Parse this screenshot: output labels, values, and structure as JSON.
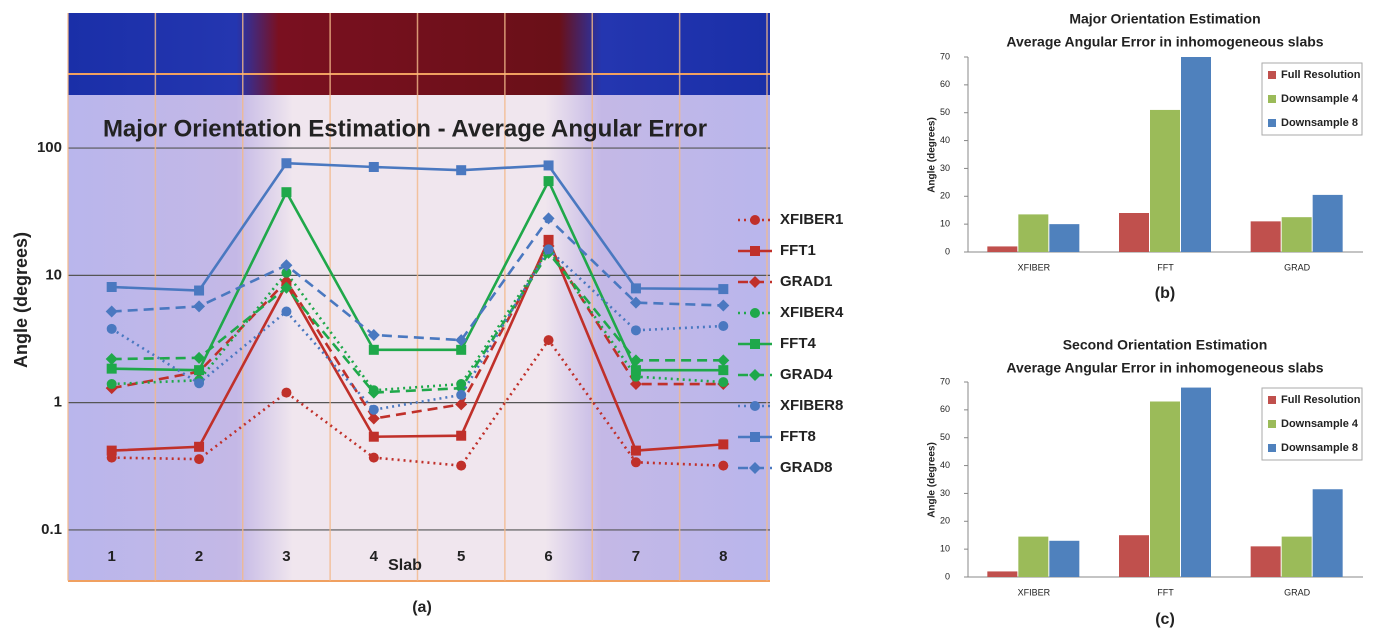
{
  "chart_data": [
    {
      "type": "line",
      "title": "Major Orientation Estimation - Average Angular Error",
      "xlabel": "Slab",
      "ylabel": "Angle (degrees)",
      "caption": "(a)",
      "categories": [
        "1",
        "2",
        "3",
        "4",
        "5",
        "6",
        "7",
        "8"
      ],
      "log_scale": true,
      "grid": true,
      "legend": "right",
      "ylim": [
        0.04,
        250
      ],
      "yticks": [
        0.1,
        1,
        10,
        100
      ],
      "series": [
        {
          "name": "XFIBER1",
          "color": "#c0302a",
          "dash": "dotted",
          "marker": "circle",
          "values": [
            0.37,
            0.36,
            1.2,
            0.37,
            0.32,
            3.1,
            0.34,
            0.32
          ]
        },
        {
          "name": "FFT1",
          "color": "#c0302a",
          "dash": "solid",
          "marker": "square",
          "values": [
            0.42,
            0.45,
            8.5,
            0.54,
            0.55,
            19,
            0.42,
            0.47
          ]
        },
        {
          "name": "GRAD1",
          "color": "#c0302a",
          "dash": "dashed",
          "marker": "diamond",
          "values": [
            1.3,
            1.75,
            9,
            0.75,
            0.97,
            17,
            1.4,
            1.4
          ]
        },
        {
          "name": "XFIBER4",
          "color": "#1fa84a",
          "dash": "dotted",
          "marker": "circle",
          "values": [
            1.4,
            1.5,
            10.5,
            1.25,
            1.4,
            16,
            1.6,
            1.45
          ]
        },
        {
          "name": "FFT4",
          "color": "#1fa84a",
          "dash": "solid",
          "marker": "square",
          "values": [
            1.85,
            1.8,
            45,
            2.6,
            2.6,
            55,
            1.8,
            1.8
          ]
        },
        {
          "name": "GRAD4",
          "color": "#1fa84a",
          "dash": "dashed",
          "marker": "diamond",
          "values": [
            2.2,
            2.25,
            8,
            1.2,
            1.3,
            15,
            2.15,
            2.15
          ]
        },
        {
          "name": "XFIBER8",
          "color": "#4a78c0",
          "dash": "dotted",
          "marker": "circle",
          "values": [
            3.8,
            1.42,
            5.2,
            0.88,
            1.15,
            16,
            3.7,
            4
          ]
        },
        {
          "name": "FFT8",
          "color": "#4a78c0",
          "dash": "solid",
          "marker": "square",
          "values": [
            8.1,
            7.6,
            76,
            71,
            67,
            73,
            7.9,
            7.8
          ]
        },
        {
          "name": "GRAD8",
          "color": "#4a78c0",
          "dash": "dashed",
          "marker": "diamond",
          "values": [
            5.2,
            5.7,
            12,
            3.4,
            3.1,
            28,
            6.1,
            5.8
          ]
        }
      ]
    },
    {
      "type": "bar",
      "title": "Major Orientation Estimation",
      "subtitle": "Average Angular Error in inhomogeneous slabs",
      "ylabel": "Angle (degrees)",
      "caption": "(b)",
      "categories": [
        "XFIBER",
        "FFT",
        "GRAD"
      ],
      "grid": false,
      "legend": "upper right",
      "ylim": [
        0,
        70
      ],
      "yticks": [
        0,
        10,
        20,
        30,
        40,
        50,
        60,
        70
      ],
      "series": [
        {
          "name": "Full Resolution",
          "color": "#c0504d",
          "values": [
            2,
            14,
            11
          ]
        },
        {
          "name": "Downsample 4",
          "color": "#9bbb59",
          "values": [
            13.5,
            51,
            12.5
          ]
        },
        {
          "name": "Downsample 8",
          "color": "#4f81bd",
          "values": [
            10,
            70,
            20.5
          ]
        }
      ]
    },
    {
      "type": "bar",
      "title": "Second Orientation Estimation",
      "subtitle": "Average Angular Error in inhomogeneous slabs",
      "ylabel": "Angle (degrees)",
      "caption": "(c)",
      "categories": [
        "XFIBER",
        "FFT",
        "GRAD"
      ],
      "grid": false,
      "legend": "upper right",
      "ylim": [
        0,
        70
      ],
      "yticks": [
        0,
        10,
        20,
        30,
        40,
        50,
        60,
        70
      ],
      "series": [
        {
          "name": "Full Resolution",
          "color": "#c0504d",
          "values": [
            2,
            15,
            11
          ]
        },
        {
          "name": "Downsample 4",
          "color": "#9bbb59",
          "values": [
            14.5,
            63,
            14.5
          ]
        },
        {
          "name": "Downsample 8",
          "color": "#4f81bd",
          "values": [
            13,
            68,
            31.5
          ]
        }
      ]
    }
  ]
}
